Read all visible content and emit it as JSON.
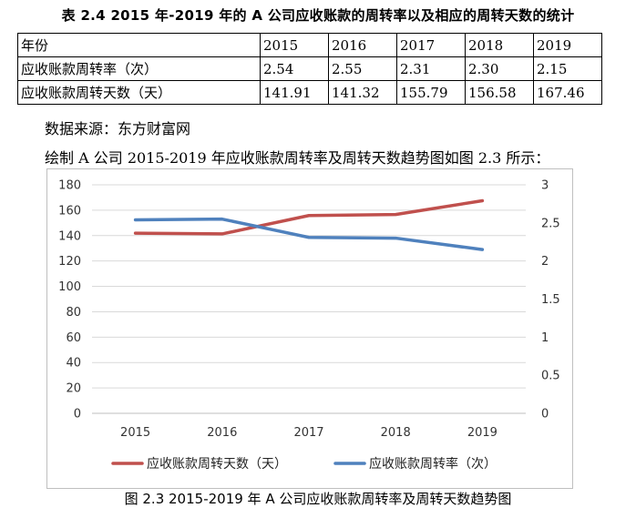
{
  "table": {
    "caption": "表 2.4 2015 年-2019 年的 A 公司应收账款的周转率以及相应的周转天数的统计",
    "header": [
      "年份",
      "2015",
      "2016",
      "2017",
      "2018",
      "2019"
    ],
    "rows": [
      [
        "应收账款周转率（次）",
        "2.54",
        "2.55",
        "2.31",
        "2.30",
        "2.15"
      ],
      [
        "应收账款周转天数（天）",
        "141.91",
        "141.32",
        "155.79",
        "156.58",
        "167.46"
      ]
    ]
  },
  "source_text": "数据来源：东方财富网",
  "intro_text": "绘制 A 公司 2015-2019 年应收账款周转率及周转天数趋势图如图 2.3 所示：",
  "chart_data": {
    "type": "line",
    "categories": [
      "2015",
      "2016",
      "2017",
      "2018",
      "2019"
    ],
    "series": [
      {
        "name": "应收账款周转天数（天）",
        "axis": "left",
        "color": "#c0504d",
        "values": [
          141.91,
          141.32,
          155.79,
          156.58,
          167.46
        ]
      },
      {
        "name": "应收账款周转率（次）",
        "axis": "right",
        "color": "#4f81bd",
        "values": [
          2.54,
          2.55,
          2.31,
          2.3,
          2.15
        ]
      }
    ],
    "y_left": {
      "min": 0,
      "max": 180,
      "ticks": [
        "0",
        "20",
        "40",
        "60",
        "80",
        "100",
        "120",
        "140",
        "160",
        "180"
      ]
    },
    "y_right": {
      "min": 0,
      "max": 3,
      "ticks": [
        "0",
        "0.5",
        "1",
        "1.5",
        "2",
        "2.5",
        "3"
      ]
    },
    "legend_position": "bottom",
    "gridlines": true
  },
  "figure_caption": "图 2.3 2015-2019 年 A 公司应收账款周转率及周转天数趋势图"
}
